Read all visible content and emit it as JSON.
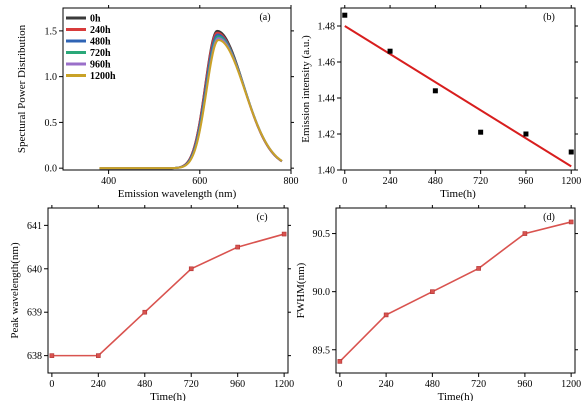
{
  "colors": {
    "0h": "#3a3a3a",
    "240h": "#d83b3b",
    "480h": "#2f64b5",
    "720h": "#2aa879",
    "960h": "#9a6fc9",
    "1200h": "#c9a227",
    "fit_line": "#d81e1e",
    "marker": "#000000",
    "line_cd": "#d9534f"
  },
  "chart_data": [
    {
      "type": "line",
      "panel_label": "(a)",
      "xlabel": "Emission  wavelength (nm)",
      "ylabel": "Spectural Power Distribution",
      "xlim": [
        300,
        800
      ],
      "ylim": [
        -0.02,
        1.75
      ],
      "xticks": [
        400,
        600,
        800
      ],
      "yticks": [
        0.0,
        0.5,
        1.0,
        1.5
      ],
      "ytick_labels": [
        "0.0",
        "0.5",
        "1.0",
        "1.5"
      ],
      "legend": "top-left",
      "series": [
        {
          "name": "0h",
          "color_key": "0h",
          "peak_wavelength": 638,
          "peak": 1.5
        },
        {
          "name": "240h",
          "color_key": "240h",
          "peak_wavelength": 638,
          "peak": 1.48
        },
        {
          "name": "480h",
          "color_key": "480h",
          "peak_wavelength": 639,
          "peak": 1.46
        },
        {
          "name": "720h",
          "color_key": "720h",
          "peak_wavelength": 640,
          "peak": 1.44
        },
        {
          "name": "960h",
          "color_key": "960h",
          "peak_wavelength": 640.5,
          "peak": 1.42
        },
        {
          "name": "1200h",
          "color_key": "1200h",
          "peak_wavelength": 640.8,
          "peak": 1.4
        }
      ],
      "x_range": [
        380,
        780
      ]
    },
    {
      "type": "scatter",
      "panel_label": "(b)",
      "xlabel": "Time(h)",
      "ylabel": "Emission intensity (a.u.)",
      "xlim": [
        -20,
        1220
      ],
      "ylim": [
        1.4,
        1.49
      ],
      "xticks": [
        0,
        240,
        480,
        720,
        960,
        1200
      ],
      "yticks": [
        1.4,
        1.42,
        1.44,
        1.46,
        1.48
      ],
      "ytick_labels": [
        "1.40",
        "1.42",
        "1.44",
        "1.46",
        "1.48"
      ],
      "x": [
        0,
        240,
        480,
        720,
        960,
        1200
      ],
      "y": [
        1.486,
        1.466,
        1.444,
        1.421,
        1.42,
        1.41
      ],
      "fit": {
        "x": [
          0,
          1200
        ],
        "y": [
          1.48,
          1.402
        ]
      }
    },
    {
      "type": "line",
      "panel_label": "(c)",
      "xlabel": "Time(h)",
      "ylabel": "Peak wavelength(nm)",
      "xlim": [
        -20,
        1220
      ],
      "ylim": [
        637.6,
        641.4
      ],
      "xticks": [
        0,
        240,
        480,
        720,
        960,
        1200
      ],
      "yticks": [
        638,
        639,
        640,
        641
      ],
      "ytick_labels": [
        "638",
        "639",
        "640",
        "641"
      ],
      "x": [
        0,
        240,
        480,
        720,
        960,
        1200
      ],
      "y": [
        638,
        638,
        639,
        640,
        640.5,
        640.8
      ]
    },
    {
      "type": "line",
      "panel_label": "(d)",
      "xlabel": "Time(h)",
      "ylabel": "FWHM(nm)",
      "xlim": [
        -20,
        1220
      ],
      "ylim": [
        89.3,
        90.72
      ],
      "xticks": [
        0,
        240,
        480,
        720,
        960,
        1200
      ],
      "yticks": [
        89.5,
        90.0,
        90.5
      ],
      "ytick_labels": [
        "89.5",
        "90.0",
        "90.5"
      ],
      "x": [
        0,
        240,
        480,
        720,
        960,
        1200
      ],
      "y": [
        89.4,
        89.8,
        90.0,
        90.2,
        90.5,
        90.6
      ]
    }
  ]
}
